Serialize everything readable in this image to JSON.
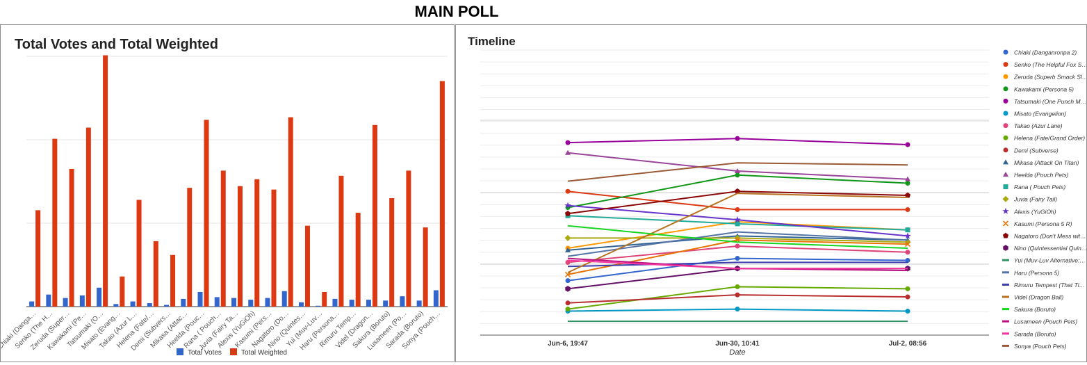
{
  "page": {
    "title": "MAIN POLL"
  },
  "colors": {
    "total_votes": "#3366cc",
    "total_weighted": "#dc3912",
    "grid": "#e6e6e6",
    "axis": "#333333"
  },
  "chart_data": [
    {
      "type": "bar",
      "title": "Total Votes and Total Weighted",
      "xlabel": "",
      "ylabel": "",
      "ylim": [
        0,
        290
      ],
      "legend": "bottom",
      "grid": true,
      "categories": [
        "Chiaki (Danga…",
        "Senko (The H…",
        "Zeruda (Super…",
        "Kawakami (Pe…",
        "Tatsumaki (O…",
        "Misato (Evang…",
        "Takao (Azur L…",
        "Helena (Fate/…",
        "Demi (Subvers…",
        "Mikasa (Attac…",
        "Heelda (Pouc…",
        "Rana ( Pouch…",
        "Juvia (Fairy Ta…",
        "Alexis (YuGiOh)",
        "Kasumi (Pers…",
        "Nagatoro (Do…",
        "Nino (Quintes…",
        "Yui (Muv-Luv…",
        "Haru (Persona…",
        "Rimuru Temp…",
        "Videl (Dragon…",
        "Sakura (Boruto)",
        "Lusameen (Po…",
        "Sarada (Boruto)",
        "Sonya (Pouch…"
      ],
      "series": [
        {
          "name": "Total Votes",
          "values": [
            6,
            14,
            10,
            13,
            22,
            3,
            6,
            4,
            2,
            9,
            17,
            11,
            10,
            8,
            10,
            18,
            5,
            1,
            9,
            8,
            8,
            7,
            12,
            7,
            19
          ]
        },
        {
          "name": "Total Weighted",
          "values": [
            112,
            195,
            160,
            208,
            292,
            35,
            124,
            76,
            60,
            138,
            217,
            158,
            140,
            148,
            136,
            220,
            94,
            17,
            152,
            109,
            211,
            126,
            158,
            92,
            262
          ]
        }
      ]
    },
    {
      "type": "line",
      "title": "Timeline",
      "xlabel": "Date",
      "ylabel": "",
      "x": [
        "Jun-6, 19:47",
        "Jun-30, 10:41",
        "Jul-2, 08:56"
      ],
      "legend": "right",
      "grid": true,
      "ylim": [
        0,
        100
      ],
      "series": [
        {
          "name": "Chiaki (Danganronpa 2)",
          "color": "#3366cc",
          "marker": "circle",
          "values": [
            21,
            32,
            31
          ]
        },
        {
          "name": "Senko (The Helpful Fox S…",
          "color": "#dc3912",
          "marker": "circle",
          "values": [
            65,
            56,
            56
          ]
        },
        {
          "name": "Zeruda (Superb Smack Sl…",
          "color": "#ff9900",
          "marker": "circle",
          "values": [
            37,
            50,
            46
          ]
        },
        {
          "name": "Kawakami (Persona 5)",
          "color": "#109618",
          "marker": "circle",
          "values": [
            57,
            73,
            69
          ]
        },
        {
          "name": "Tatsumaki (One Punch M…",
          "color": "#990099",
          "marker": "circle",
          "values": [
            89,
            91,
            88
          ]
        },
        {
          "name": "Misato (Evangelion)",
          "color": "#0099c6",
          "marker": "circle",
          "values": [
            6,
            7,
            6
          ]
        },
        {
          "name": "Takao (Azur Lane)",
          "color": "#dd4477",
          "marker": "circle",
          "values": [
            30,
            38,
            35
          ]
        },
        {
          "name": "Helena (Fate/Grand Order)",
          "color": "#66aa00",
          "marker": "circle",
          "values": [
            7,
            18,
            17
          ]
        },
        {
          "name": "Demi (Subverse)",
          "color": "#b82e2e",
          "marker": "circle",
          "values": [
            10,
            14,
            13
          ]
        },
        {
          "name": "Mikasa (Attack On Titan)",
          "color": "#316395",
          "marker": "triangle",
          "values": [
            36,
            43,
            41
          ]
        },
        {
          "name": "Heelda (Pouch Pets)",
          "color": "#994499",
          "marker": "triangle",
          "values": [
            84,
            75,
            71
          ]
        },
        {
          "name": "Rana ( Pouch Pets)",
          "color": "#22aa99",
          "marker": "square",
          "values": [
            53,
            49,
            46
          ]
        },
        {
          "name": "Juvia (Fairy Tail)",
          "color": "#aaaa11",
          "marker": "diamond",
          "values": [
            42,
            42,
            40
          ]
        },
        {
          "name": "Alexis (YuGiOh)",
          "color": "#6633cc",
          "marker": "star",
          "values": [
            58,
            51,
            43
          ]
        },
        {
          "name": "Kasumi (Persona 5 R)",
          "color": "#e67300",
          "marker": "x",
          "values": [
            24,
            41,
            39
          ]
        },
        {
          "name": "Nagatoro (Don't Mess wit…",
          "color": "#8b0707",
          "marker": "pentagon",
          "values": [
            54,
            65,
            63
          ]
        },
        {
          "name": "Nino (Quintessential Quin…",
          "color": "#651067",
          "marker": "hexagon",
          "values": [
            17,
            27,
            27
          ]
        },
        {
          "name": "Yui (Muv-Luv Alternative:…",
          "color": "#329262",
          "marker": "dash",
          "values": [
            1,
            1,
            1
          ]
        },
        {
          "name": "Haru (Persona 5)",
          "color": "#5574a6",
          "marker": "dash",
          "values": [
            33,
            45,
            41
          ]
        },
        {
          "name": "Rimuru Tempest (That Ti…",
          "color": "#3b3eac",
          "marker": "dash",
          "values": [
            28,
            30,
            30
          ]
        },
        {
          "name": "Videl (Dragon Ball)",
          "color": "#b77322",
          "marker": "dash",
          "values": [
            25,
            64,
            62
          ]
        },
        {
          "name": "Sakura (Boruto)",
          "color": "#16d620",
          "marker": "dash",
          "values": [
            48,
            40,
            37
          ]
        },
        {
          "name": "Lusameen (Pouch Pets)",
          "color": "#b91383",
          "marker": "dash",
          "values": [
            32,
            27,
            26
          ]
        },
        {
          "name": "Sarada (Boruto)",
          "color": "#f4359e",
          "marker": "dash",
          "values": [
            31,
            27,
            27
          ]
        },
        {
          "name": "Sonya (Pouch Pets)",
          "color": "#9c5935",
          "marker": "dash",
          "values": [
            70,
            79,
            78
          ]
        }
      ]
    }
  ]
}
